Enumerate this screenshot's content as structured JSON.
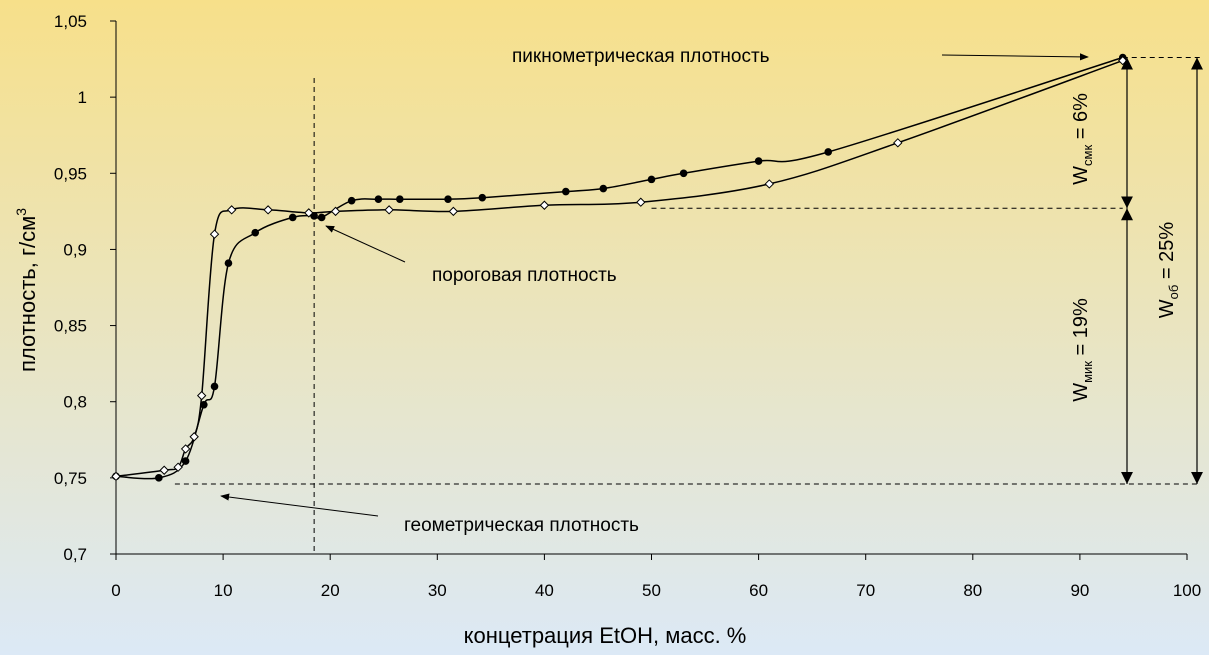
{
  "colors": {
    "background_top": "#f7e08a",
    "background_bottom": "#dce9f6",
    "line": "#000000"
  },
  "chart_data": {
    "type": "line",
    "title": "",
    "xlabel": "концетрация EtOH, масс. %",
    "ylabel_main": "плотность, г/см",
    "ylabel_sup": "3",
    "xlim": [
      0,
      100
    ],
    "ylim": [
      0.7,
      1.05
    ],
    "x_ticks": [
      "0",
      "10",
      "20",
      "30",
      "40",
      "50",
      "60",
      "70",
      "80",
      "90",
      "100"
    ],
    "y_ticks": [
      "0,7",
      "0,75",
      "0,8",
      "0,85",
      "0,9",
      "0,95",
      "1",
      "1,05"
    ],
    "grid": false,
    "series": [
      {
        "marker": "filled-circle",
        "points": [
          [
            0,
            0.751
          ],
          [
            4,
            0.75
          ],
          [
            6.5,
            0.761
          ],
          [
            8.2,
            0.798
          ],
          [
            9.2,
            0.81
          ],
          [
            10.5,
            0.891
          ],
          [
            13,
            0.911
          ],
          [
            16.5,
            0.921
          ],
          [
            18.5,
            0.922
          ],
          [
            19.2,
            0.921
          ],
          [
            22,
            0.932
          ],
          [
            24.5,
            0.933
          ],
          [
            26.5,
            0.933
          ],
          [
            31,
            0.933
          ],
          [
            34.2,
            0.934
          ],
          [
            42,
            0.938
          ],
          [
            45.5,
            0.94
          ],
          [
            50,
            0.946
          ],
          [
            53,
            0.95
          ],
          [
            60,
            0.958
          ],
          [
            66.5,
            0.964
          ],
          [
            94,
            1.026
          ]
        ]
      },
      {
        "marker": "open-diamond",
        "points": [
          [
            0,
            0.751
          ],
          [
            4.5,
            0.755
          ],
          [
            5.8,
            0.757
          ],
          [
            6.5,
            0.769
          ],
          [
            7.3,
            0.777
          ],
          [
            8.0,
            0.804
          ],
          [
            9.2,
            0.91
          ],
          [
            10.8,
            0.926
          ],
          [
            14.2,
            0.926
          ],
          [
            18,
            0.924
          ],
          [
            20.5,
            0.925
          ],
          [
            25.5,
            0.926
          ],
          [
            31.5,
            0.925
          ],
          [
            40,
            0.929
          ],
          [
            49,
            0.931
          ],
          [
            61,
            0.943
          ],
          [
            73,
            0.97
          ],
          [
            94,
            1.024
          ]
        ]
      }
    ],
    "annotations": {
      "pyc": "пикнометрическая  плотность",
      "threshold": "пороговая плотность",
      "geom": "геометрическая плотность"
    },
    "w_labels": {
      "smk_main": "W",
      "smk_sub": "смк",
      "smk_value": " = 6%",
      "mik_main": "W",
      "mik_sub": "мик",
      "mik_value": " = 19%",
      "ob_main": "W",
      "ob_sub": "об",
      "ob_value": " = 25%"
    },
    "reference_levels": {
      "geometric_density": 0.746,
      "threshold_density": 0.927,
      "pycnometric_density": 1.026,
      "threshold_concentration": 18.5
    }
  }
}
